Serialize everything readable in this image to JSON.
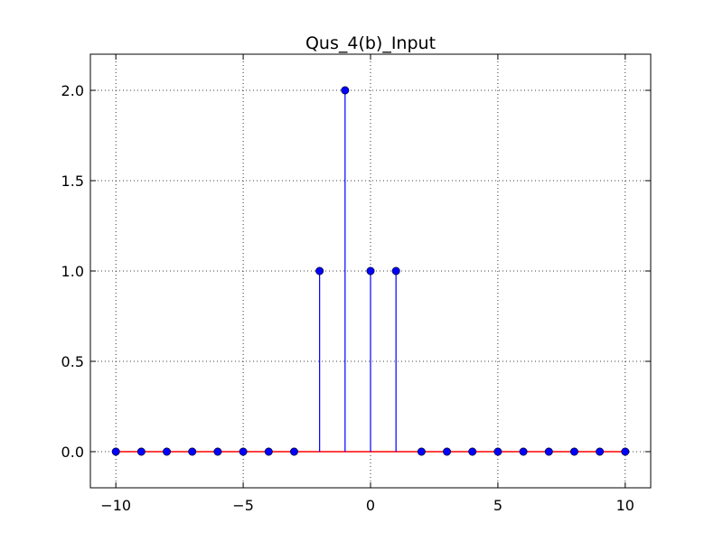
{
  "chart_data": {
    "type": "stem",
    "title": "Qus_4(b)_Input",
    "xlabel": "",
    "ylabel": "",
    "xlim": [
      -11,
      11
    ],
    "ylim": [
      -0.2,
      2.2
    ],
    "xticks": [
      -10,
      -5,
      0,
      5,
      10
    ],
    "xtick_labels": [
      "−10",
      "−5",
      "0",
      "5",
      "10"
    ],
    "yticks": [
      0.0,
      0.5,
      1.0,
      1.5,
      2.0
    ],
    "ytick_labels": [
      "0.0",
      "0.5",
      "1.0",
      "1.5",
      "2.0"
    ],
    "grid": true,
    "x": [
      -10,
      -9,
      -8,
      -7,
      -6,
      -5,
      -4,
      -3,
      -2,
      -1,
      0,
      1,
      2,
      3,
      4,
      5,
      6,
      7,
      8,
      9,
      10
    ],
    "values": [
      0,
      0,
      0,
      0,
      0,
      0,
      0,
      0,
      1,
      2,
      1,
      1,
      0,
      0,
      0,
      0,
      0,
      0,
      0,
      0,
      0
    ],
    "colors": {
      "stem": "#0000ff",
      "marker": "#0000ff",
      "marker_edge": "#000000",
      "baseline": "#ff0000",
      "grid": "#000000",
      "axes": "#000000"
    }
  }
}
